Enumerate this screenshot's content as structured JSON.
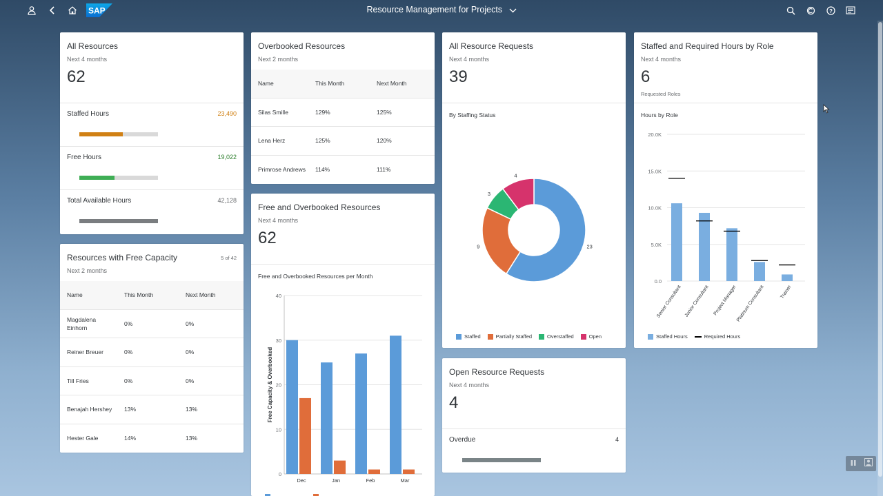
{
  "shell": {
    "title": "Resource Management for Projects",
    "logo": "SAP",
    "icons": [
      "user-icon",
      "back-icon",
      "home-icon",
      "search-icon",
      "copilot-icon",
      "help-icon",
      "notifications-icon"
    ]
  },
  "all_resources": {
    "title": "All Resources",
    "subtitle": "Next 4 months",
    "kpi": "62",
    "rows": [
      {
        "label": "Staffed Hours",
        "value": "23,490",
        "color": "#d08014",
        "fill": 0.55
      },
      {
        "label": "Free Hours",
        "value": "19,022",
        "color": "#2b7d2b",
        "fill": 0.45
      },
      {
        "label": "Total Available Hours",
        "value": "42,128",
        "color": "#6a6d70",
        "fill": 1.0
      }
    ]
  },
  "free_capacity": {
    "title": "Resources with Free Capacity",
    "subtitle": "Next 2 months",
    "count": "5 of 42",
    "headers": [
      "Name",
      "This Month",
      "Next Month"
    ],
    "rows": [
      [
        "Magdalena Einhorn",
        "0%",
        "0%"
      ],
      [
        "Reiner Breuer",
        "0%",
        "0%"
      ],
      [
        "Till Fries",
        "0%",
        "0%"
      ],
      [
        "Benajah Hershey",
        "13%",
        "13%"
      ],
      [
        "Hester Gale",
        "14%",
        "13%"
      ]
    ]
  },
  "overbooked": {
    "title": "Overbooked Resources",
    "subtitle": "Next 2 months",
    "headers": [
      "Name",
      "This Month",
      "Next Month"
    ],
    "rows": [
      [
        "Silas Smille",
        "129%",
        "125%"
      ],
      [
        "Lena Herz",
        "125%",
        "120%"
      ],
      [
        "Primrose Andrews",
        "114%",
        "111%"
      ]
    ]
  },
  "free_overbooked": {
    "title": "Free and Overbooked Resources",
    "subtitle": "Next 4 months",
    "kpi": "62",
    "chart_title": "Free and Overbooked Resources per Month"
  },
  "requests": {
    "title": "All Resource Requests",
    "subtitle": "Next 4 months",
    "kpi": "39",
    "chart_title": "By Staffing Status"
  },
  "open_requests": {
    "title": "Open Resource Requests",
    "subtitle": "Next 4 months",
    "kpi": "4",
    "row_label": "Overdue",
    "row_value": "4"
  },
  "roles": {
    "title": "Staffed and Required Hours by Role",
    "subtitle": "Next 4 months",
    "kpi": "6",
    "kpi_label": "Requested Roles",
    "chart_title": "Hours by Role"
  },
  "chart_data": [
    {
      "type": "bar",
      "categories": [
        "Dec",
        "Jan",
        "Feb",
        "Mar"
      ],
      "ylabel": "Free Capacity & Overbooked",
      "ylim": [
        0,
        40
      ],
      "yticks": [
        0,
        10,
        20,
        30,
        40
      ],
      "series": [
        {
          "values": [
            30,
            25,
            27,
            31
          ],
          "color": "#5b9bd9"
        },
        {
          "values": [
            17,
            3,
            1,
            1
          ],
          "color": "#e06d3a"
        }
      ]
    },
    {
      "type": "pie",
      "labels": [
        "Staffed",
        "Partially Staffed",
        "Overstaffed",
        "Open"
      ],
      "values": [
        23,
        9,
        3,
        4
      ],
      "colors": [
        "#5b9bd9",
        "#e06d3a",
        "#2bb673",
        "#d6336c"
      ],
      "legend": "bottom"
    },
    {
      "type": "bar",
      "categories": [
        "Senior Consultant",
        "Junior Consultant",
        "Project Manager",
        "Platinum Consultant",
        "Trainer"
      ],
      "ylim": [
        0,
        20000
      ],
      "yticks": [
        "0.0",
        "5.0K",
        "10.0K",
        "15.0K",
        "20.0K"
      ],
      "series": [
        {
          "name": "Staffed Hours",
          "values": [
            10600,
            9300,
            7200,
            2600,
            900
          ],
          "color": "#7aaee0"
        },
        {
          "name": "Required Hours",
          "values": [
            14000,
            8200,
            6800,
            2800,
            2200
          ],
          "color": "#000000"
        }
      ],
      "legend": "bottom"
    }
  ]
}
